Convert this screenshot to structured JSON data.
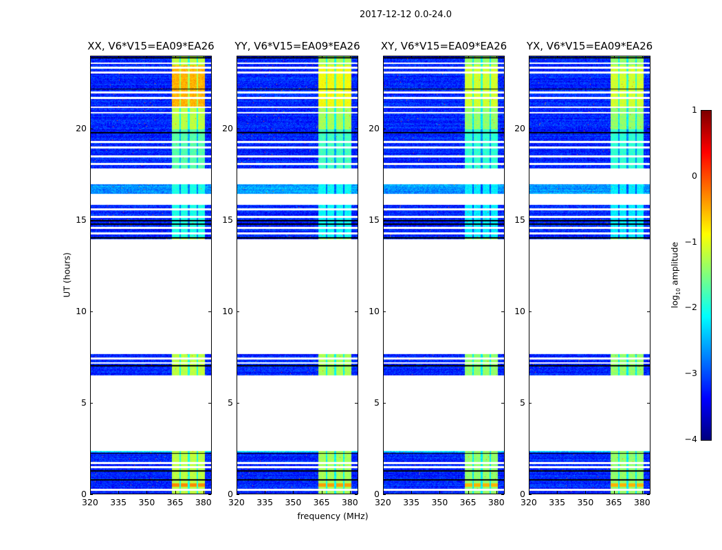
{
  "suptitle": "2017-12-12 0.0-24.0",
  "chart_data": {
    "type": "heatmap",
    "title": "2017-12-12 0.0-24.0",
    "xlabel": "frequency (MHz)",
    "ylabel": "UT (hours)",
    "xlim": [
      320,
      384.4
    ],
    "ylim": [
      0,
      24
    ],
    "xticks": [
      "320",
      "335",
      "350",
      "365",
      "380"
    ],
    "xtick_values": [
      320,
      335,
      350,
      365,
      380
    ],
    "yticks": [
      "0",
      "5",
      "10",
      "15",
      "20"
    ],
    "ytick_values": [
      0,
      5,
      10,
      15,
      20
    ],
    "panels": [
      {
        "title": "XX, V6*V15=EA09*EA26",
        "band_level": -1.2,
        "top_band_level": -0.5,
        "rfi_level": -0.3
      },
      {
        "title": "YY, V6*V15=EA09*EA26",
        "band_level": -1.3,
        "top_band_level": -0.9,
        "rfi_level": -0.4
      },
      {
        "title": "XY, V6*V15=EA09*EA26",
        "band_level": -1.4,
        "top_band_level": -1.1,
        "rfi_level": -0.5
      },
      {
        "title": "YX, V6*V15=EA09*EA26",
        "band_level": -1.4,
        "top_band_level": -1.1,
        "rfi_level": -0.5
      }
    ],
    "time_segments_hours": [
      [
        0,
        2.4
      ],
      [
        6.53,
        7.7
      ],
      [
        13.96,
        15.87
      ],
      [
        16.47,
        17.0
      ],
      [
        17.86,
        24.0
      ]
    ],
    "background_level": -3.2,
    "bright_band_mhz": [
      363,
      380.5
    ],
    "subband_gaps_mhz": [
      367.5,
      372,
      376.5
    ],
    "flagged_times_white": [
      0.26,
      1.5,
      1.73,
      7.45,
      7.2,
      14.3,
      14.6,
      15.2,
      15.6,
      18.1,
      18.5,
      19.0,
      19.3,
      20.9,
      21.2,
      21.7,
      22.0,
      23.1,
      23.6,
      23.35
    ],
    "flagged_times_black": [
      0.8,
      1.3,
      2.25,
      7.05,
      14.05,
      14.8,
      15.0,
      19.8,
      22.2,
      23.9
    ],
    "colorbar": {
      "label_prefix": "log",
      "label_sub": "10",
      "label_suffix": " amplitude",
      "range": [
        -4,
        1
      ],
      "ticks": [
        "1",
        "0",
        "−1",
        "−2",
        "−3",
        "−4"
      ],
      "tick_values": [
        1,
        0,
        -1,
        -2,
        -3,
        -4
      ],
      "colormap": "jet"
    }
  }
}
